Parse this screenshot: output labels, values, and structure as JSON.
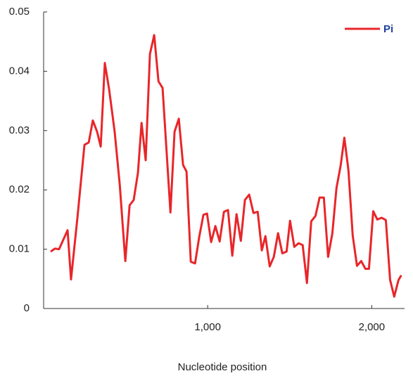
{
  "chart_data": {
    "type": "line",
    "x_label": "Nucleotide position",
    "x": [
      43,
      69,
      94,
      146,
      167,
      206,
      249,
      275,
      300,
      326,
      348,
      373,
      399,
      433,
      464,
      498,
      524,
      549,
      575,
      597,
      622,
      648,
      674,
      700,
      725,
      773,
      798,
      824,
      850,
      871,
      897,
      923,
      948,
      974,
      996,
      1021,
      1047,
      1073,
      1099,
      1124,
      1150,
      1176,
      1202,
      1227,
      1253,
      1279,
      1305,
      1330,
      1352,
      1378,
      1403,
      1429,
      1455,
      1481,
      1502,
      1528,
      1554,
      1579,
      1605,
      1631,
      1657,
      1682,
      1708,
      1734,
      1760,
      1785,
      1811,
      1833,
      1858,
      1884,
      1910,
      1936,
      1961,
      1983,
      2009,
      2034,
      2060,
      2086,
      2112,
      2137,
      2163,
      2180
    ],
    "series": [
      {
        "name": "Pi",
        "color": "#e8262a",
        "values": [
          0.0096,
          0.0101,
          0.01,
          0.0132,
          0.0049,
          0.0153,
          0.0276,
          0.028,
          0.0317,
          0.0298,
          0.0273,
          0.0414,
          0.037,
          0.0298,
          0.0209,
          0.008,
          0.0174,
          0.0183,
          0.0229,
          0.0313,
          0.025,
          0.0429,
          0.0461,
          0.0383,
          0.0372,
          0.0162,
          0.0298,
          0.032,
          0.0242,
          0.0231,
          0.0079,
          0.0076,
          0.012,
          0.0158,
          0.016,
          0.0112,
          0.0139,
          0.0113,
          0.0163,
          0.0166,
          0.0089,
          0.0159,
          0.0114,
          0.0183,
          0.0192,
          0.0161,
          0.0163,
          0.0098,
          0.0122,
          0.0071,
          0.0087,
          0.0127,
          0.0093,
          0.0096,
          0.0148,
          0.0104,
          0.011,
          0.0107,
          0.0043,
          0.0147,
          0.0156,
          0.0187,
          0.0187,
          0.0087,
          0.0127,
          0.0203,
          0.0242,
          0.0288,
          0.0233,
          0.0123,
          0.0072,
          0.008,
          0.0067,
          0.0067,
          0.0164,
          0.015,
          0.0153,
          0.0149,
          0.0048,
          0.002,
          0.0048,
          0.0056
        ]
      }
    ],
    "xlim": [
      0,
      2200
    ],
    "xticks": [
      {
        "value": 1000,
        "label": "1,000"
      },
      {
        "value": 2000,
        "label": "2,000"
      }
    ],
    "ylim": [
      0,
      0.05
    ],
    "yticks": [
      0,
      0.01,
      0.02,
      0.03,
      0.04,
      0.05
    ],
    "legend": "top-right",
    "legend_text_color": "#1f3f9e"
  }
}
